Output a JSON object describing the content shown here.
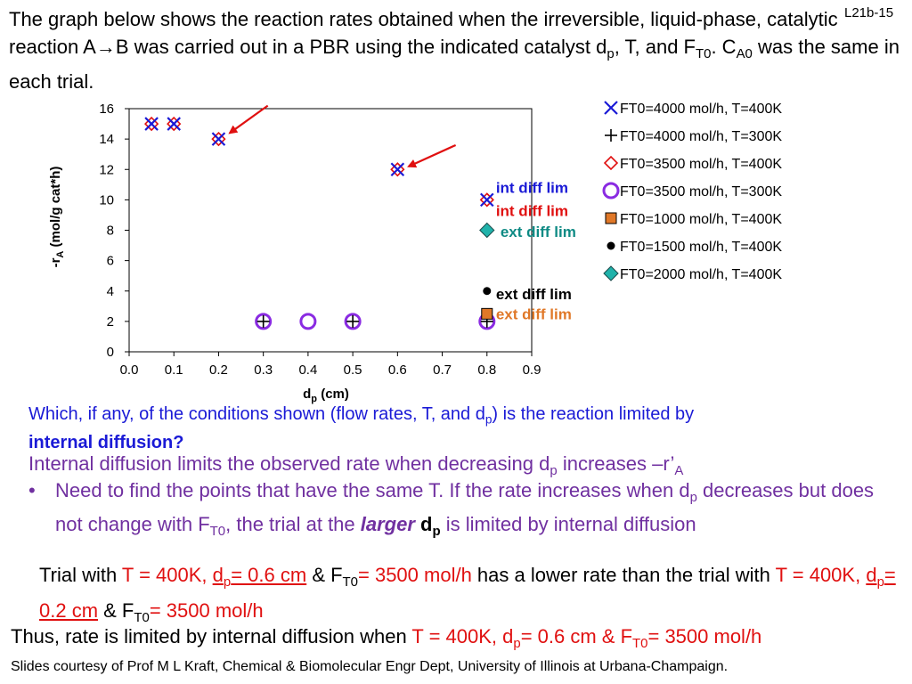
{
  "slide": {
    "number": "L21b-15"
  },
  "intro": {
    "p1": "The graph below shows the reaction rates obtained when the irreversible, liquid-phase, catalytic reaction A→B was carried out in a PBR using the indicated catalyst d",
    "sub_p": "p",
    "p2": ", T, and F",
    "sub_t0": "T0",
    "p3": ". C",
    "sub_a0": "A0",
    "p4": " was the same in each trial."
  },
  "chart_data": {
    "type": "scatter",
    "xlabel_main": "d",
    "xlabel_sub": "p",
    "xlabel_rest": " (cm)",
    "ylabel_main": "-r",
    "ylabel_sub": "A",
    "ylabel_rest": " (mol/g cat*h)",
    "xlim": [
      0.0,
      0.9
    ],
    "ylim": [
      0,
      16
    ],
    "x_ticks": [
      "0.0",
      "0.1",
      "0.2",
      "0.3",
      "0.4",
      "0.5",
      "0.6",
      "0.7",
      "0.8",
      "0.9"
    ],
    "y_ticks": [
      "0",
      "2",
      "4",
      "6",
      "8",
      "10",
      "12",
      "14",
      "16"
    ],
    "legend_position": "right",
    "series": [
      {
        "name": "FT0=4000 mol/h, T=400K",
        "marker": "x",
        "color": "#1a1ad6",
        "points": [
          [
            0.05,
            15
          ],
          [
            0.1,
            15
          ],
          [
            0.2,
            14
          ],
          [
            0.6,
            12
          ],
          [
            0.8,
            10
          ]
        ]
      },
      {
        "name": "FT0=4000 mol/h, T=300K",
        "marker": "plus",
        "color": "#000000",
        "points": [
          [
            0.3,
            2
          ],
          [
            0.5,
            2
          ],
          [
            0.8,
            2
          ]
        ]
      },
      {
        "name": "FT0=3500 mol/h, T=400K",
        "marker": "diamond-open",
        "color": "#e01010",
        "points": [
          [
            0.05,
            15
          ],
          [
            0.1,
            15
          ],
          [
            0.2,
            14
          ],
          [
            0.6,
            12
          ],
          [
            0.8,
            10
          ]
        ]
      },
      {
        "name": "FT0=3500 mol/h, T=300K",
        "marker": "circle-open",
        "color": "#8a2be2",
        "points": [
          [
            0.3,
            2
          ],
          [
            0.4,
            2
          ],
          [
            0.5,
            2
          ],
          [
            0.8,
            2
          ]
        ]
      },
      {
        "name": "FT0=1000 mol/h, T=400K",
        "marker": "square",
        "color": "#e07828",
        "points": [
          [
            0.8,
            2.5
          ]
        ]
      },
      {
        "name": "FT0=1500 mol/h, T=400K",
        "marker": "circle",
        "color": "#000000",
        "points": [
          [
            0.8,
            4
          ]
        ]
      },
      {
        "name": "FT0=2000 mol/h, T=400K",
        "marker": "diamond",
        "color": "#20b2aa",
        "points": [
          [
            0.8,
            8
          ]
        ]
      }
    ],
    "annotations": [
      {
        "text": "int diff lim",
        "color": "#1a1ad6",
        "x": 0.82,
        "y": 10.8
      },
      {
        "text": "int diff lim",
        "color": "#e01010",
        "x": 0.82,
        "y": 9.3
      },
      {
        "text": "ext diff lim",
        "color": "#0e8a84",
        "x": 0.83,
        "y": 7.9
      },
      {
        "text": "ext diff lim",
        "color": "#000000",
        "x": 0.82,
        "y": 3.8
      },
      {
        "text": "ext diff lim",
        "color": "#e07828",
        "x": 0.82,
        "y": 2.5
      }
    ],
    "arrows": [
      {
        "from": [
          0.31,
          16.2
        ],
        "to": [
          0.225,
          14.4
        ],
        "color": "#e01010"
      },
      {
        "from": [
          0.73,
          13.6
        ],
        "to": [
          0.625,
          12.2
        ],
        "color": "#e01010"
      }
    ]
  },
  "question": {
    "p1": "Which, if any, of the conditions shown (flow rates, T, and d",
    "sub_p": "p",
    "p2": ") is the reaction limited by",
    "bold": "internal diffusion?"
  },
  "insight": {
    "p1": "Internal diffusion limits the observed rate when decreasing d",
    "sub_p": "p",
    "p2": " increases –r’",
    "sub_a": "A"
  },
  "bullet": {
    "dot": "•",
    "p1": "Need to find the points that have the same T. If the rate increases when d",
    "sub_p": "p",
    "p2": " decreases but does not change with F",
    "sub_t0": "T0",
    "p3": ", the trial at the ",
    "larger": "larger",
    "sp": " ",
    "d": "d",
    "d_sub": "p",
    "p4": " is limited by internal diffusion"
  },
  "trial": {
    "t1": "Trial with ",
    "r1": "T = 400K, ",
    "u1": "d",
    "u1_sub": "p",
    "u1_rest": "= 0.6 cm",
    "amp1": " & F",
    "amp1_sub": "T0",
    "r2": "= 3500 mol/h",
    "t2": " has a lower rate than the trial with ",
    "r3": "T = 400K, ",
    "u2": "d",
    "u2_sub": "p",
    "u2_rest": "= 0.2 cm",
    "amp2": " & F",
    "amp2_sub": "T0",
    "t3": "= 3500 mol/h"
  },
  "conclusion": {
    "t1": "Thus, rate is limited by internal diffusion when ",
    "r1": "T = 400K, d",
    "r1_sub": "p",
    "r2": "= 0.6 cm & F",
    "r2_sub": "T0",
    "r3": "= 3500 mol/h"
  },
  "credit": {
    "text": "Slides courtesy of Prof M L Kraft, Chemical & Biomolecular Engr Dept, University of Illinois at Urbana-Champaign."
  },
  "colors": {
    "question": "#1a1ad6",
    "body": "#7030a0",
    "highlight": "#e01010"
  }
}
